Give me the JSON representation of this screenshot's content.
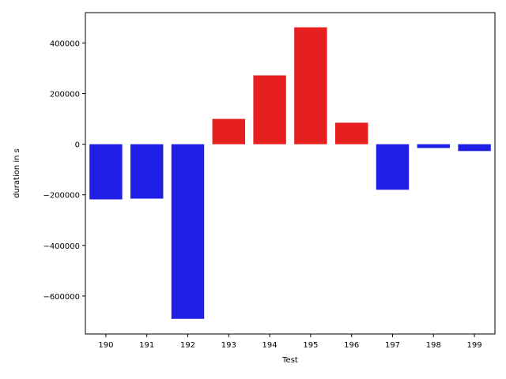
{
  "chart_data": {
    "type": "bar",
    "categories": [
      "190",
      "191",
      "192",
      "193",
      "194",
      "195",
      "196",
      "197",
      "198",
      "199"
    ],
    "values": [
      -218000,
      -215000,
      -690000,
      100000,
      272000,
      462000,
      85000,
      -180000,
      -15000,
      -27000
    ],
    "bar_colors": [
      "#1f1fe6",
      "#1f1fe6",
      "#1f1fe6",
      "#e61f1f",
      "#e61f1f",
      "#e61f1f",
      "#e61f1f",
      "#1f1fe6",
      "#1f1fe6",
      "#1f1fe6"
    ],
    "xlabel": "Test",
    "ylabel": "duration in s",
    "ylim": [
      -750000,
      520000
    ],
    "yticks": [
      -600000,
      -400000,
      -200000,
      0,
      200000,
      400000
    ],
    "ytick_labels": [
      "−600000",
      "−400000",
      "−200000",
      "0",
      "200000",
      "400000"
    ],
    "grid": false,
    "legend": "none"
  }
}
